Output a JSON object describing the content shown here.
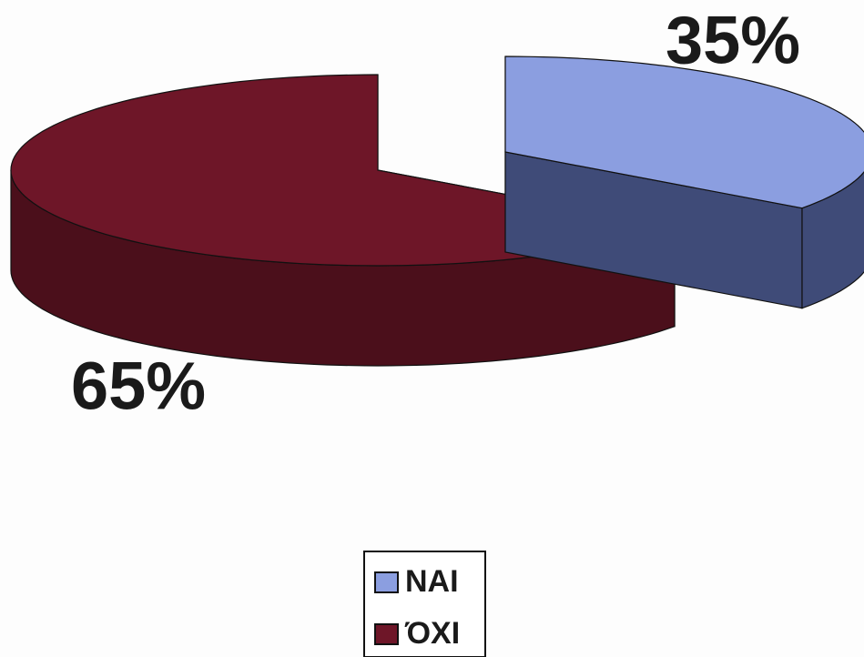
{
  "chart_data": {
    "type": "pie",
    "categories": [
      "ΝΑΙ",
      "ΌΧΙ"
    ],
    "values": [
      35,
      65
    ],
    "value_labels": [
      "35%",
      "65%"
    ],
    "colors": [
      "#8b9ee0",
      "#6e1628"
    ],
    "side_colors": [
      "#3f4b78",
      "#4b0f1b"
    ],
    "legend": "bottom"
  }
}
